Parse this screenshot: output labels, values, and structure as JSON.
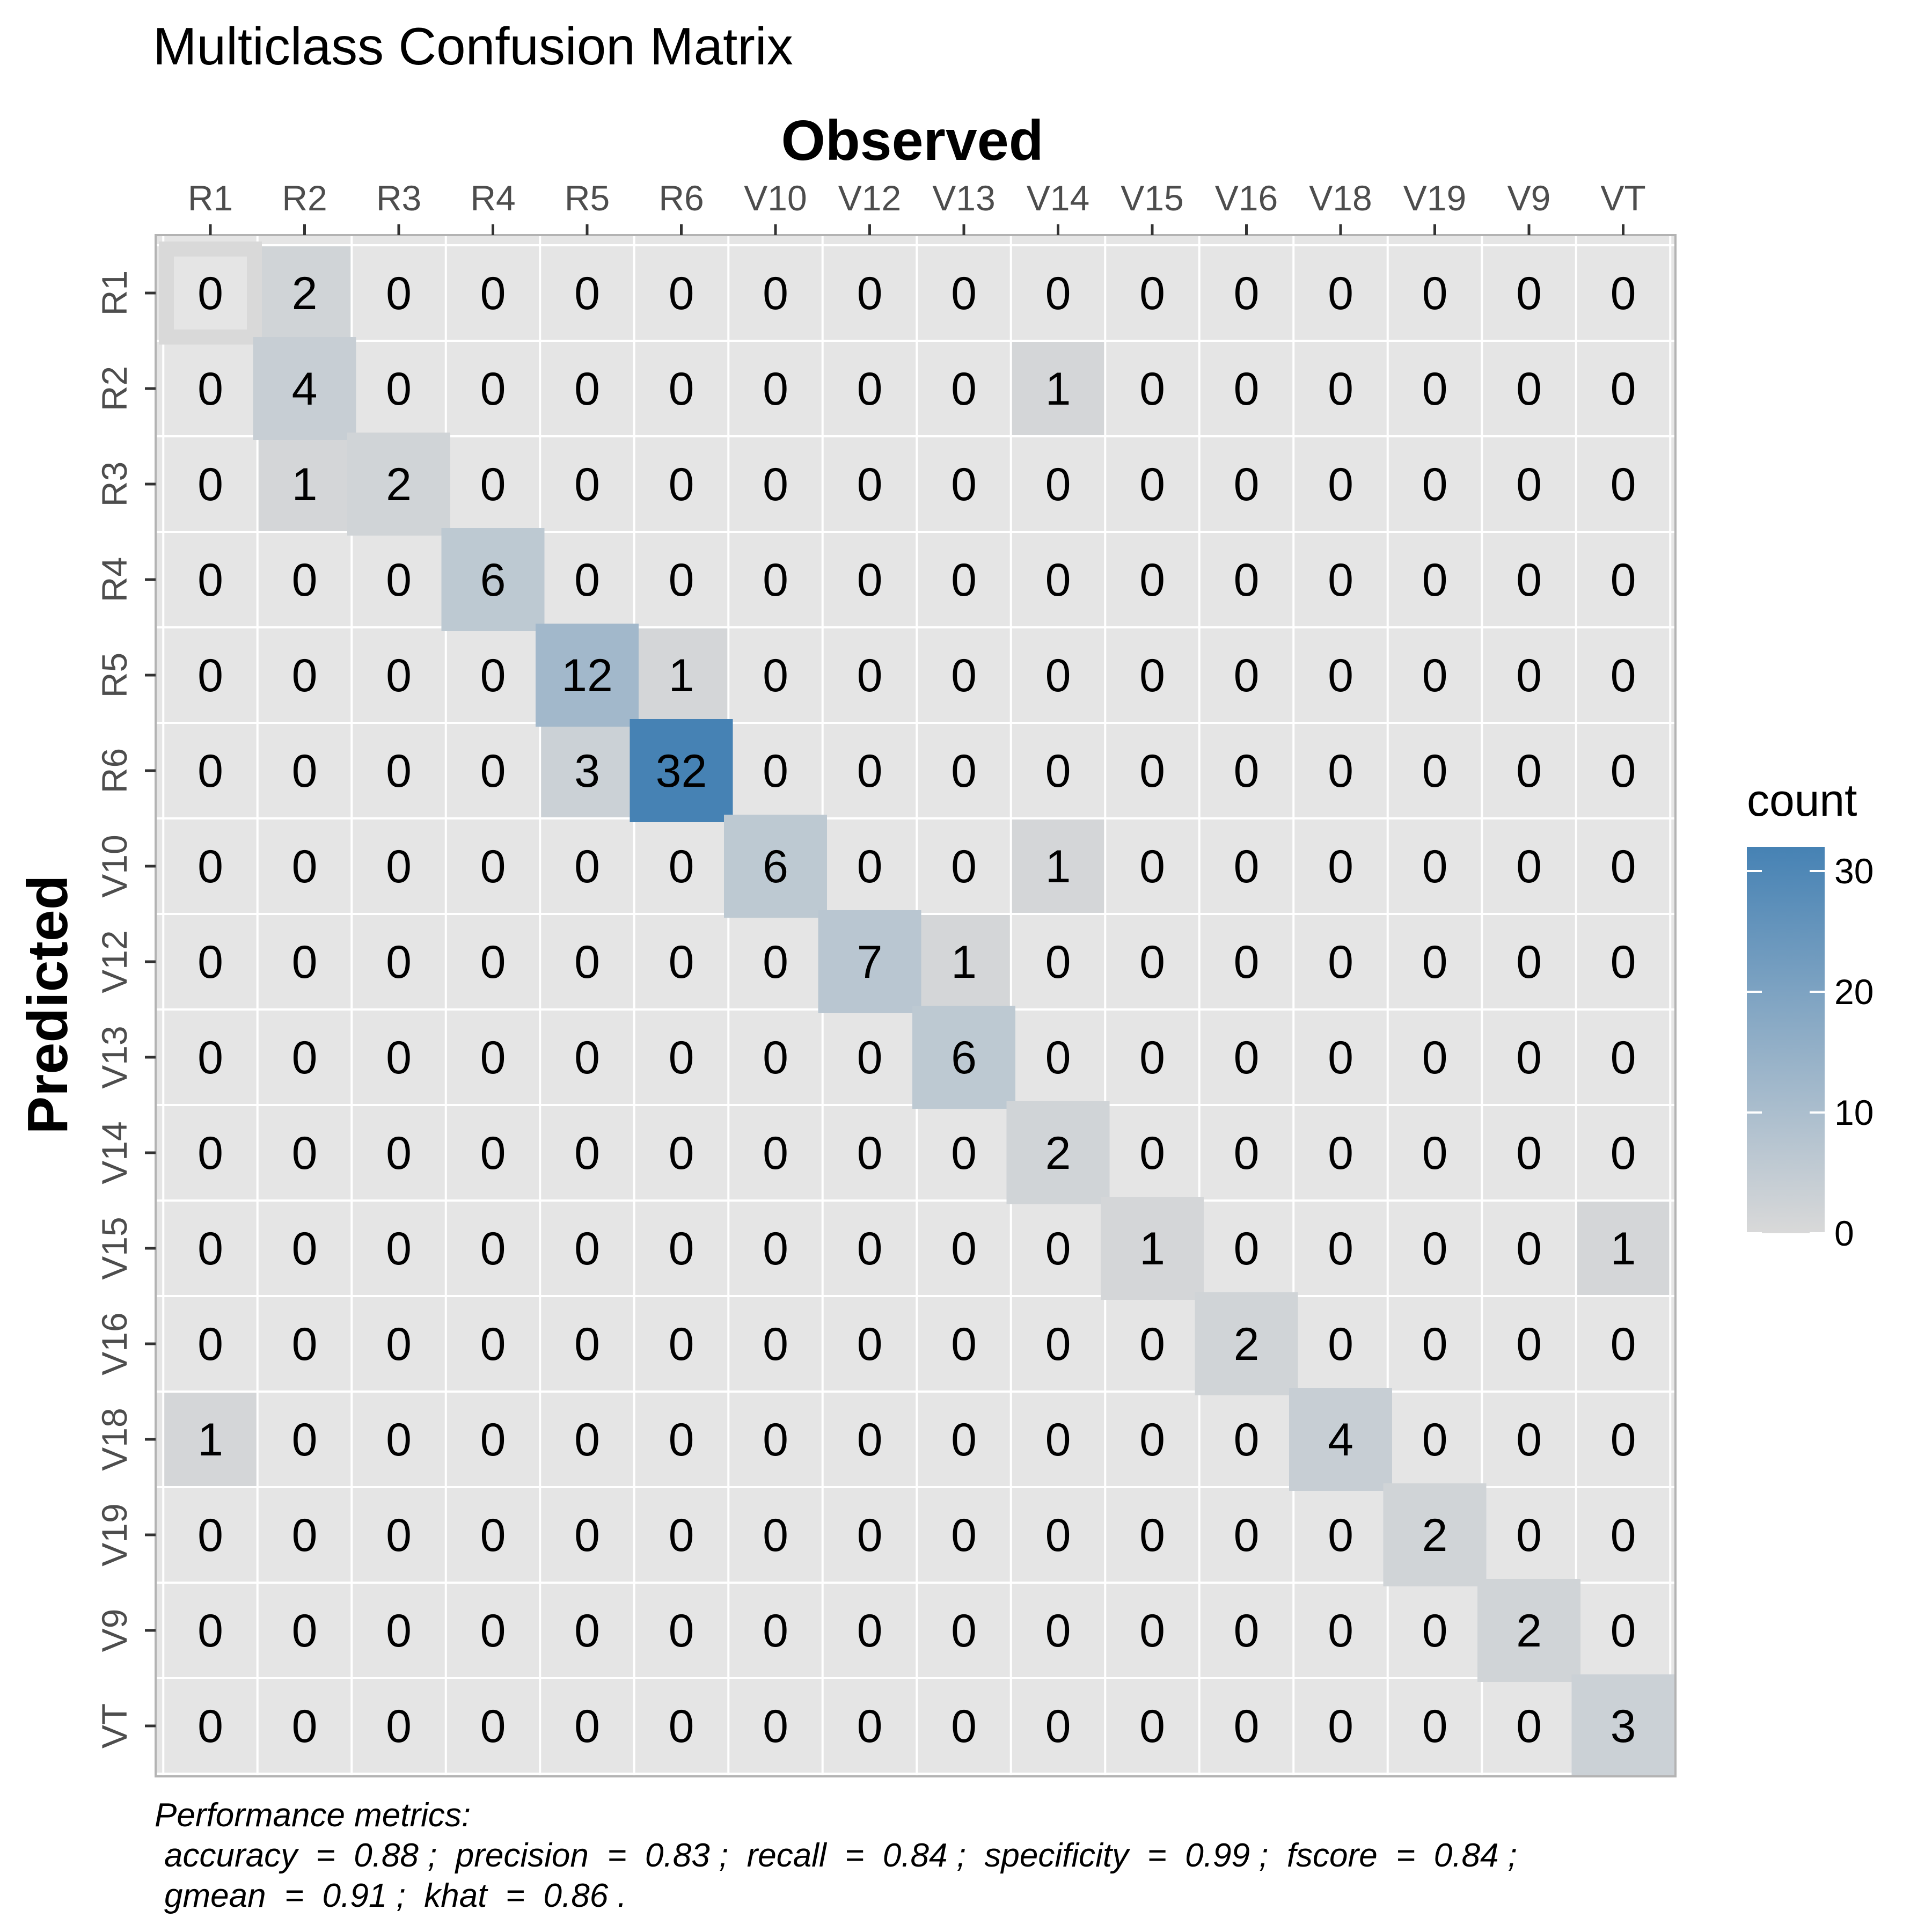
{
  "chart_data": {
    "type": "heatmap",
    "title": "Multiclass Confusion Matrix",
    "xlabel": "Observed",
    "ylabel": "Predicted",
    "x_categories": [
      "R1",
      "R2",
      "R3",
      "R4",
      "R5",
      "R6",
      "V10",
      "V12",
      "V13",
      "V14",
      "V15",
      "V16",
      "V18",
      "V19",
      "V9",
      "VT"
    ],
    "y_categories": [
      "R1",
      "R2",
      "R3",
      "R4",
      "R5",
      "R6",
      "V10",
      "V12",
      "V13",
      "V14",
      "V15",
      "V16",
      "V18",
      "V19",
      "V9",
      "VT"
    ],
    "values": [
      [
        0,
        2,
        0,
        0,
        0,
        0,
        0,
        0,
        0,
        0,
        0,
        0,
        0,
        0,
        0,
        0
      ],
      [
        0,
        4,
        0,
        0,
        0,
        0,
        0,
        0,
        0,
        1,
        0,
        0,
        0,
        0,
        0,
        0
      ],
      [
        0,
        1,
        2,
        0,
        0,
        0,
        0,
        0,
        0,
        0,
        0,
        0,
        0,
        0,
        0,
        0
      ],
      [
        0,
        0,
        0,
        6,
        0,
        0,
        0,
        0,
        0,
        0,
        0,
        0,
        0,
        0,
        0,
        0
      ],
      [
        0,
        0,
        0,
        0,
        12,
        1,
        0,
        0,
        0,
        0,
        0,
        0,
        0,
        0,
        0,
        0
      ],
      [
        0,
        0,
        0,
        0,
        3,
        32,
        0,
        0,
        0,
        0,
        0,
        0,
        0,
        0,
        0,
        0
      ],
      [
        0,
        0,
        0,
        0,
        0,
        0,
        6,
        0,
        0,
        1,
        0,
        0,
        0,
        0,
        0,
        0
      ],
      [
        0,
        0,
        0,
        0,
        0,
        0,
        0,
        7,
        1,
        0,
        0,
        0,
        0,
        0,
        0,
        0
      ],
      [
        0,
        0,
        0,
        0,
        0,
        0,
        0,
        0,
        6,
        0,
        0,
        0,
        0,
        0,
        0,
        0
      ],
      [
        0,
        0,
        0,
        0,
        0,
        0,
        0,
        0,
        0,
        2,
        0,
        0,
        0,
        0,
        0,
        0
      ],
      [
        0,
        0,
        0,
        0,
        0,
        0,
        0,
        0,
        0,
        0,
        1,
        0,
        0,
        0,
        0,
        1
      ],
      [
        0,
        0,
        0,
        0,
        0,
        0,
        0,
        0,
        0,
        0,
        0,
        2,
        0,
        0,
        0,
        0
      ],
      [
        1,
        0,
        0,
        0,
        0,
        0,
        0,
        0,
        0,
        0,
        0,
        0,
        4,
        0,
        0,
        0
      ],
      [
        0,
        0,
        0,
        0,
        0,
        0,
        0,
        0,
        0,
        0,
        0,
        0,
        0,
        2,
        0,
        0
      ],
      [
        0,
        0,
        0,
        0,
        0,
        0,
        0,
        0,
        0,
        0,
        0,
        0,
        0,
        0,
        2,
        0
      ],
      [
        0,
        0,
        0,
        0,
        0,
        0,
        0,
        0,
        0,
        0,
        0,
        0,
        0,
        0,
        0,
        3
      ]
    ],
    "legend": {
      "title": "count",
      "ticks": [
        0,
        10,
        20,
        30
      ],
      "range": [
        0,
        32
      ],
      "low_color": "#d9d9d9",
      "high_color": "#4682b4",
      "placement": "right"
    },
    "panel_background": "#e5e5e5",
    "grid_color": "#ffffff",
    "diagonal_highlight": true
  },
  "caption": {
    "line1": "Performance metrics:",
    "line2": "accuracy  =  0.88 ;  precision  =  0.83 ;  recall  =  0.84 ;  specificity  =  0.99 ;  fscore  =  0.84 ;",
    "line3": "gmean  =  0.91 ;  khat  =  0.86 ."
  }
}
